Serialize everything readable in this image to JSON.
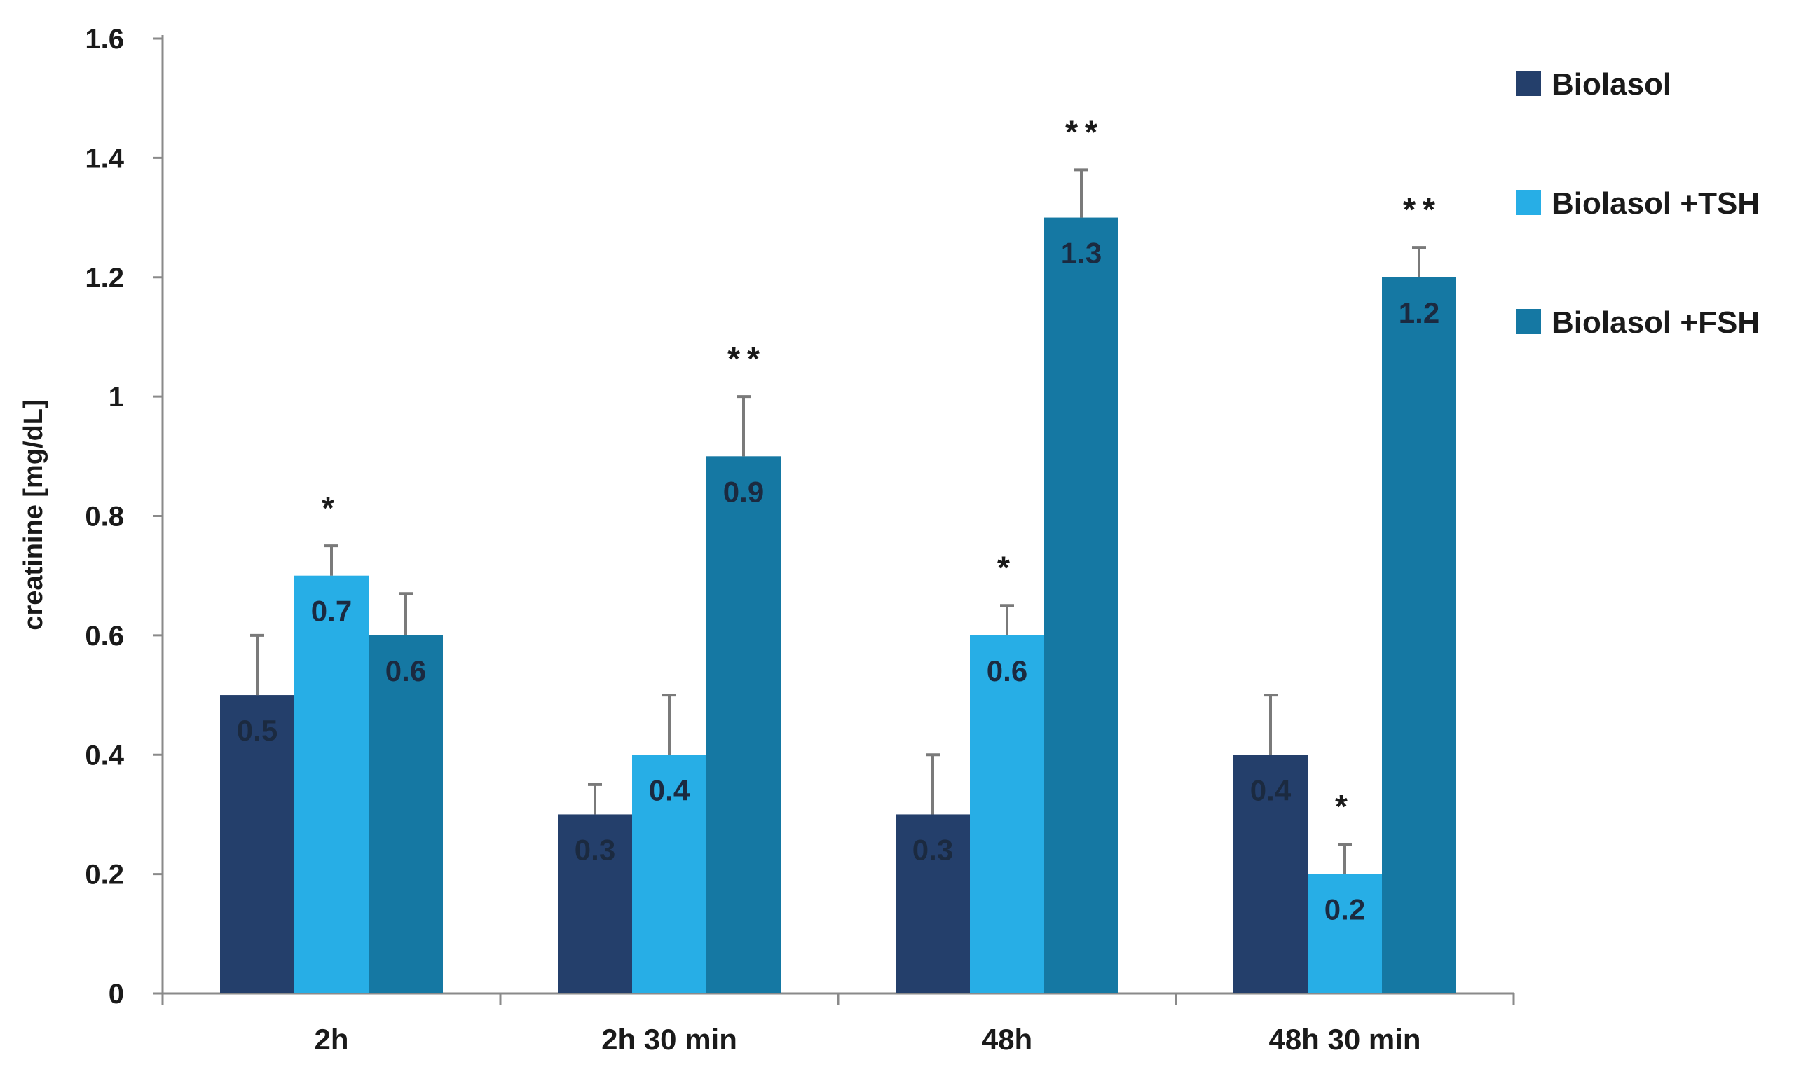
{
  "chart_data": {
    "type": "bar",
    "title": "",
    "xlabel": "",
    "ylabel": "creatinine [mg/dL]",
    "ylim": [
      0,
      1.6
    ],
    "yticks": [
      0,
      0.2,
      0.4,
      0.6,
      0.8,
      1,
      1.2,
      1.4,
      1.6
    ],
    "ytick_labels": [
      "0",
      "0.2",
      "0.4",
      "0.6",
      "0.8",
      "1",
      "1.2",
      "1.4",
      "1.6"
    ],
    "grid": false,
    "legend_position": "right",
    "categories": [
      "2h",
      "2h 30 min",
      "48h",
      "48h 30 min"
    ],
    "series": [
      {
        "name": "Biolasol",
        "color": "#243f6b",
        "values": [
          0.5,
          0.3,
          0.3,
          0.4
        ],
        "errors": [
          0.1,
          0.05,
          0.1,
          0.1
        ],
        "labels": [
          "0.5",
          "0.3",
          "0.3",
          "0.4"
        ],
        "significance": [
          "",
          "",
          "",
          ""
        ]
      },
      {
        "name": "Biolasol +TSH",
        "color": "#27aee6",
        "values": [
          0.7,
          0.4,
          0.6,
          0.2
        ],
        "errors": [
          0.05,
          0.1,
          0.05,
          0.05
        ],
        "labels": [
          "0.7",
          "0.4",
          "0.6",
          "0.2"
        ],
        "significance": [
          "*",
          "",
          "*",
          "*"
        ]
      },
      {
        "name": "Biolasol +FSH",
        "color": "#1578a3",
        "values": [
          0.6,
          0.9,
          1.3,
          1.2
        ],
        "errors": [
          0.07,
          0.1,
          0.08,
          0.05
        ],
        "labels": [
          "0.6",
          "0.9",
          "1.3",
          "1.2"
        ],
        "significance": [
          "",
          "**",
          "**",
          "**"
        ]
      }
    ]
  }
}
